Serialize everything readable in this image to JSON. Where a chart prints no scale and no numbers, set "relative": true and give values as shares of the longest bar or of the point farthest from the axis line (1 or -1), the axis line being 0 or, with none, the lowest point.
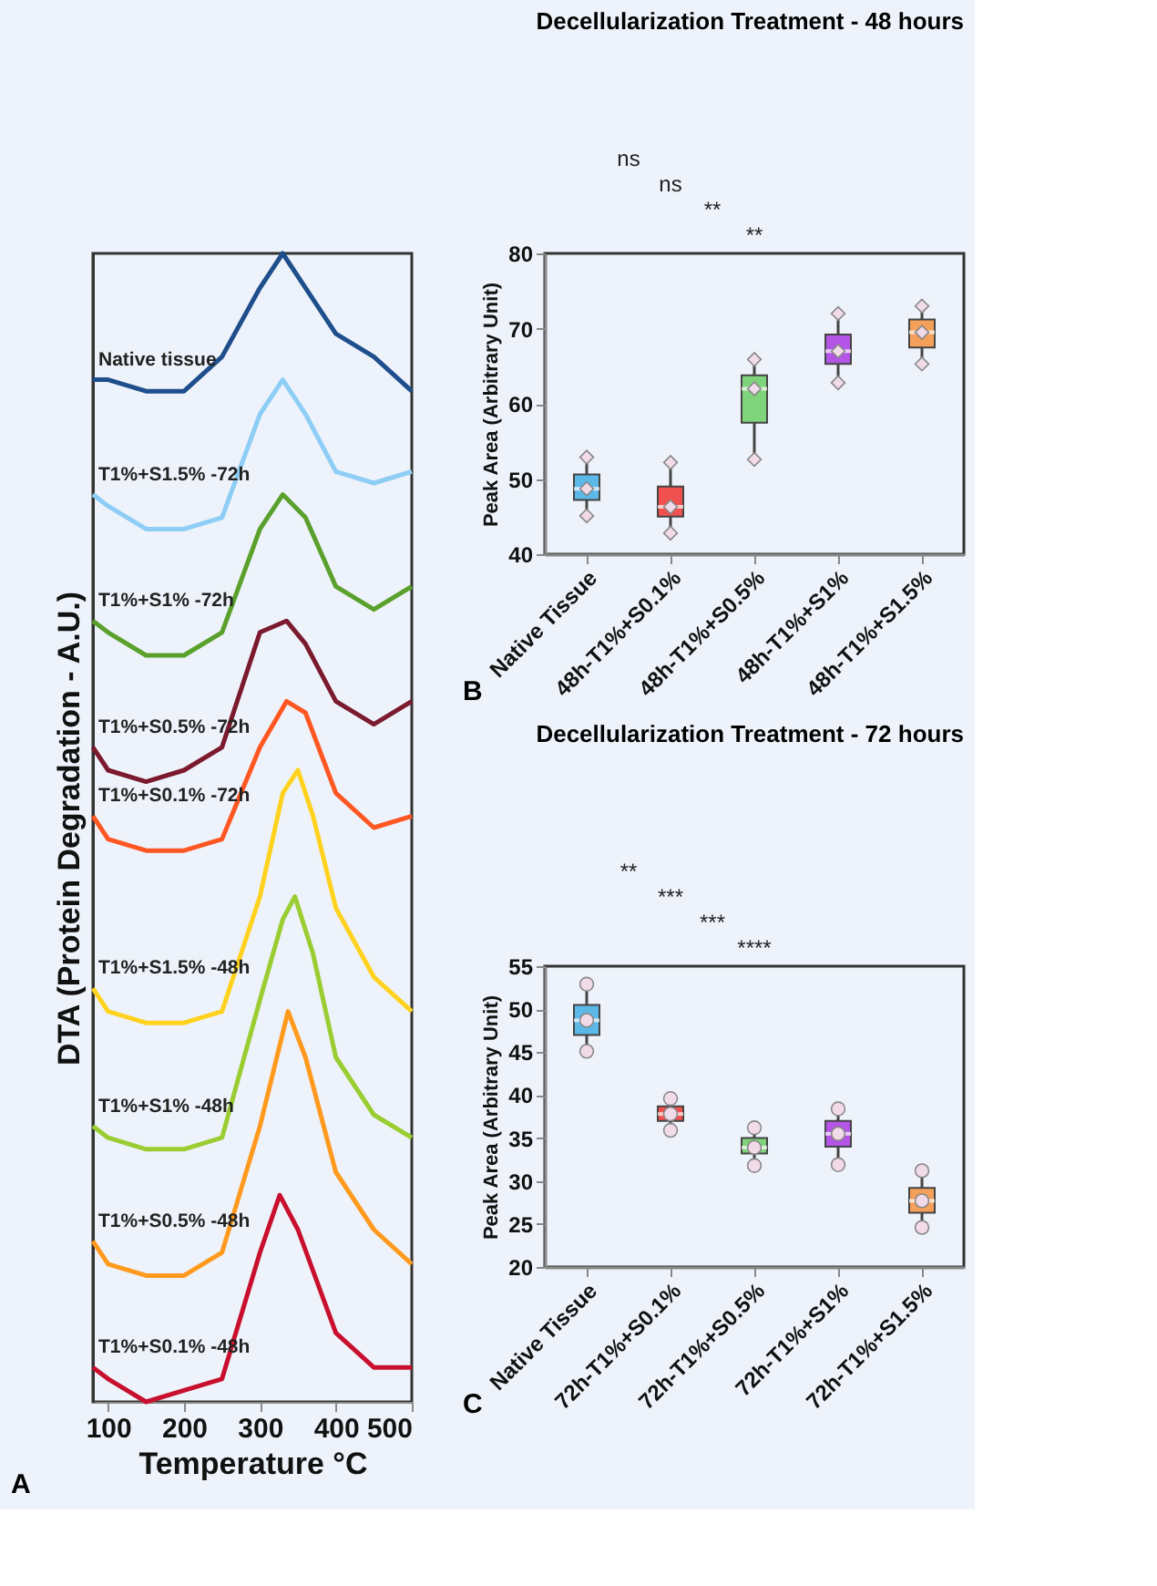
{
  "chart_data": [
    {
      "type": "line",
      "relative": true,
      "xlabel": "Temperature °C",
      "ylabel": "DTA (Protein Degradation - A.U.)",
      "xlim": [
        80,
        500
      ],
      "xticks": [
        100,
        200,
        300,
        400,
        500
      ],
      "legend": false,
      "grid": false,
      "marker": "none",
      "line_style": "solid",
      "annotations": [
        "A"
      ],
      "series": [
        {
          "name": "Native tissue",
          "color": "#1f4e8c",
          "x": [
            80,
            100,
            150,
            200,
            250,
            300,
            330,
            360,
            400,
            450,
            500
          ],
          "values": [
            0.89,
            0.89,
            0.88,
            0.88,
            0.91,
            0.97,
            1.0,
            0.97,
            0.93,
            0.91,
            0.88
          ]
        },
        {
          "name": "T1%+S1.5% -72h",
          "color": "#8ecdf5",
          "x": [
            80,
            100,
            150,
            200,
            250,
            300,
            330,
            360,
            400,
            450,
            500
          ],
          "values": [
            0.79,
            0.78,
            0.76,
            0.76,
            0.77,
            0.86,
            0.89,
            0.86,
            0.81,
            0.8,
            0.81
          ]
        },
        {
          "name": "T1%+S1% -72h",
          "color": "#5aa02c",
          "x": [
            80,
            100,
            150,
            200,
            250,
            300,
            330,
            360,
            400,
            450,
            500
          ],
          "values": [
            0.68,
            0.67,
            0.65,
            0.65,
            0.67,
            0.76,
            0.79,
            0.77,
            0.71,
            0.69,
            0.71
          ]
        },
        {
          "name": "T1%+S0.5% -72h",
          "color": "#7b1a2e",
          "x": [
            80,
            100,
            150,
            200,
            250,
            280,
            300,
            335,
            360,
            400,
            450,
            500
          ],
          "values": [
            0.57,
            0.55,
            0.54,
            0.55,
            0.57,
            0.63,
            0.67,
            0.68,
            0.66,
            0.61,
            0.59,
            0.61
          ]
        },
        {
          "name": "T1%+S0.1% -72h",
          "color": "#ff5722",
          "x": [
            80,
            100,
            150,
            200,
            250,
            300,
            335,
            360,
            400,
            450,
            500
          ],
          "values": [
            0.51,
            0.49,
            0.48,
            0.48,
            0.49,
            0.57,
            0.61,
            0.6,
            0.53,
            0.5,
            0.51
          ]
        },
        {
          "name": "T1%+S1.5% -48h",
          "color": "#ffd21f",
          "x": [
            80,
            100,
            150,
            200,
            250,
            300,
            330,
            350,
            370,
            400,
            450,
            500
          ],
          "values": [
            0.36,
            0.34,
            0.33,
            0.33,
            0.34,
            0.44,
            0.53,
            0.55,
            0.51,
            0.43,
            0.37,
            0.34
          ]
        },
        {
          "name": "T1%+S1% -48h",
          "color": "#9acd32",
          "x": [
            80,
            100,
            150,
            200,
            250,
            300,
            330,
            346,
            370,
            400,
            450,
            500
          ],
          "values": [
            0.24,
            0.23,
            0.22,
            0.22,
            0.23,
            0.35,
            0.42,
            0.44,
            0.39,
            0.3,
            0.25,
            0.23
          ]
        },
        {
          "name": "T1%+S0.5% -48h",
          "color": "#ff9a1f",
          "x": [
            80,
            100,
            150,
            200,
            250,
            300,
            337,
            360,
            400,
            450,
            500
          ],
          "values": [
            0.14,
            0.12,
            0.11,
            0.11,
            0.13,
            0.24,
            0.34,
            0.3,
            0.2,
            0.15,
            0.12
          ]
        },
        {
          "name": "T1%+S0.1% -48h",
          "color": "#c8102e",
          "x": [
            80,
            100,
            150,
            200,
            250,
            300,
            326,
            350,
            400,
            450,
            500
          ],
          "values": [
            0.03,
            0.02,
            0.0,
            0.01,
            0.02,
            0.13,
            0.18,
            0.15,
            0.06,
            0.03,
            0.03
          ]
        }
      ]
    },
    {
      "type": "box",
      "title": "Decellularization Treatment - 48 hours",
      "ylabel": "Peak Area (Arbitrary Unit)",
      "ylim": [
        40,
        80
      ],
      "yticks": [
        40,
        50,
        60,
        70,
        80
      ],
      "grid": false,
      "legend": false,
      "categories": [
        "Native Tissue",
        "48h-T1%+S0.1%",
        "48h-T1%+S0.5%",
        "48h-T1%+S1%",
        "48h-T1%+S1.5%"
      ],
      "colors": [
        "#5cb8e6",
        "#f0504f",
        "#7fd37a",
        "#b455e8",
        "#f5a05a"
      ],
      "boxes": [
        {
          "low": 45.1,
          "q1": 47.2,
          "median": 48.7,
          "q3": 50.6,
          "high": 52.9
        },
        {
          "low": 42.8,
          "q1": 45.0,
          "median": 46.3,
          "q3": 49.0,
          "high": 52.2
        },
        {
          "low": 52.6,
          "q1": 57.5,
          "median": 62.0,
          "q3": 63.8,
          "high": 65.9
        },
        {
          "low": 62.8,
          "q1": 65.3,
          "median": 67.0,
          "q3": 69.2,
          "high": 72.0
        },
        {
          "low": 65.3,
          "q1": 67.5,
          "median": 69.5,
          "q3": 71.2,
          "high": 73.0
        }
      ],
      "series": [
        {
          "type": "scatter",
          "marker": "diamond",
          "color": "#f2dbe8",
          "x": [
            "Native Tissue",
            "Native Tissue",
            "Native Tissue",
            "48h-T1%+S0.1%",
            "48h-T1%+S0.1%",
            "48h-T1%+S0.1%",
            "48h-T1%+S0.5%",
            "48h-T1%+S0.5%",
            "48h-T1%+S0.5%",
            "48h-T1%+S1%",
            "48h-T1%+S1%",
            "48h-T1%+S1%",
            "48h-T1%+S1.5%",
            "48h-T1%+S1.5%",
            "48h-T1%+S1.5%"
          ],
          "values": [
            52.9,
            48.7,
            45.1,
            52.2,
            46.3,
            42.8,
            65.9,
            62.0,
            52.6,
            72.0,
            67.0,
            62.8,
            73.0,
            69.5,
            65.3
          ]
        }
      ],
      "annotations": [
        "ns",
        "ns",
        "**",
        "**",
        "B"
      ]
    },
    {
      "type": "box",
      "title": "Decellularization Treatment - 72 hours",
      "ylabel": "Peak Area (Arbitrary Unit)",
      "ylim": [
        20,
        55
      ],
      "yticks": [
        20,
        25,
        30,
        35,
        40,
        45,
        50,
        55
      ],
      "grid": false,
      "legend": false,
      "categories": [
        "Native Tissue",
        "72h-T1%+S0.1%",
        "72h-T1%+S0.5%",
        "72h-T1%+S1%",
        "72h-T1%+S1.5%"
      ],
      "colors": [
        "#5cb8e6",
        "#f0504f",
        "#7fd37a",
        "#b455e8",
        "#f5a05a"
      ],
      "boxes": [
        {
          "low": 45.1,
          "q1": 47.0,
          "median": 48.7,
          "q3": 50.5,
          "high": 52.9
        },
        {
          "low": 35.9,
          "q1": 37.0,
          "median": 37.8,
          "q3": 38.7,
          "high": 39.6
        },
        {
          "low": 31.8,
          "q1": 33.2,
          "median": 33.9,
          "q3": 35.0,
          "high": 36.2
        },
        {
          "low": 31.9,
          "q1": 34.0,
          "median": 35.5,
          "q3": 37.0,
          "high": 38.4
        },
        {
          "low": 24.6,
          "q1": 26.3,
          "median": 27.7,
          "q3": 29.2,
          "high": 31.2
        }
      ],
      "series": [
        {
          "type": "scatter",
          "marker": "circle",
          "color": "#f2dbe8",
          "x": [
            "Native Tissue",
            "Native Tissue",
            "Native Tissue",
            "72h-T1%+S0.1%",
            "72h-T1%+S0.1%",
            "72h-T1%+S0.1%",
            "72h-T1%+S0.5%",
            "72h-T1%+S0.5%",
            "72h-T1%+S0.5%",
            "72h-T1%+S1%",
            "72h-T1%+S1%",
            "72h-T1%+S1%",
            "72h-T1%+S1.5%",
            "72h-T1%+S1.5%",
            "72h-T1%+S1.5%"
          ],
          "values": [
            52.9,
            48.7,
            45.1,
            39.6,
            37.8,
            35.9,
            36.2,
            33.9,
            31.8,
            38.4,
            35.5,
            31.9,
            31.2,
            27.7,
            24.6
          ]
        }
      ],
      "annotations": [
        "**",
        "***",
        "***",
        "****",
        "C"
      ]
    }
  ]
}
